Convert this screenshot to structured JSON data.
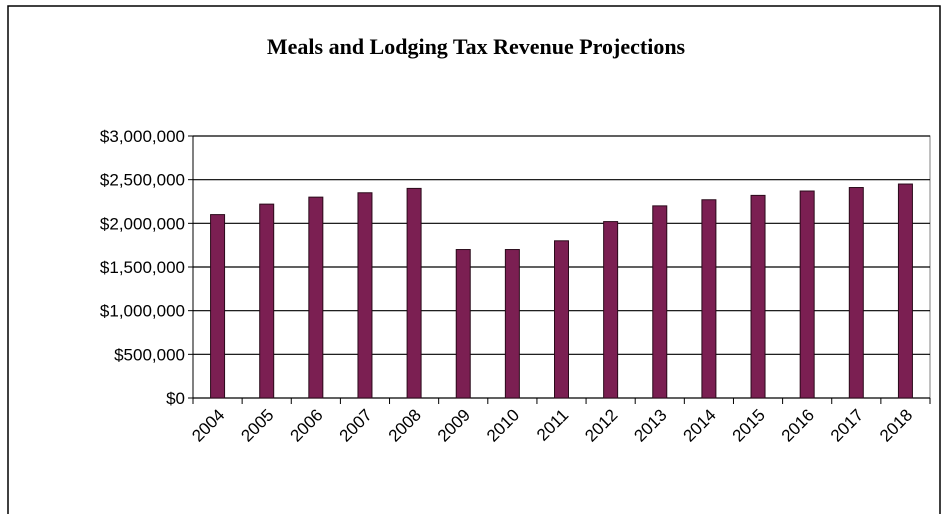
{
  "chart_data": {
    "type": "bar",
    "title": "Meals and Lodging Tax Revenue Projections",
    "categories": [
      "2004",
      "2005",
      "2006",
      "2007",
      "2008",
      "2009",
      "2010",
      "2011",
      "2012",
      "2013",
      "2014",
      "2015",
      "2016",
      "2017",
      "2018"
    ],
    "values": [
      2100000,
      2220000,
      2300000,
      2350000,
      2400000,
      1700000,
      1700000,
      1800000,
      2020000,
      2200000,
      2270000,
      2320000,
      2370000,
      2410000,
      2450000
    ],
    "color": "#7b1f52",
    "ylim": [
      0,
      3000000
    ],
    "yticks": [
      {
        "value": 0,
        "label": "$0"
      },
      {
        "value": 500000,
        "label": "$500,000"
      },
      {
        "value": 1000000,
        "label": "$1,000,000"
      },
      {
        "value": 1500000,
        "label": "$1,500,000"
      },
      {
        "value": 2000000,
        "label": "$2,000,000"
      },
      {
        "value": 2500000,
        "label": "$2,500,000"
      },
      {
        "value": 3000000,
        "label": "$3,000,000"
      }
    ],
    "grid": true
  }
}
